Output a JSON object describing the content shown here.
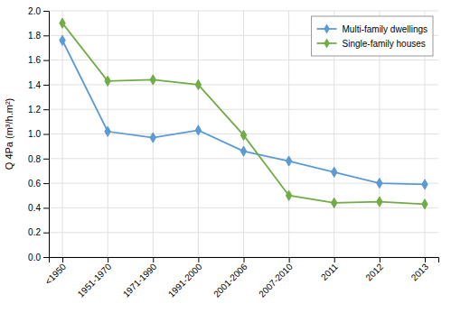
{
  "chart_data": {
    "type": "line",
    "ylabel": "Q 4Pa (m³/h.m²)",
    "categories": [
      "<1950",
      "1951-1970",
      "1971-1990",
      "1991-2000",
      "2001-2006",
      "2007-2010",
      "2011",
      "2012",
      "2013"
    ],
    "series": [
      {
        "name": "Multi-family dwellings",
        "color": "#5B9BD5",
        "marker": "diamond",
        "values": [
          1.76,
          1.02,
          0.97,
          1.03,
          0.86,
          0.78,
          0.69,
          0.6,
          0.59
        ]
      },
      {
        "name": "Single-family houses",
        "color": "#70AD47",
        "marker": "diamond",
        "values": [
          1.9,
          1.43,
          1.44,
          1.4,
          0.99,
          0.5,
          0.44,
          0.45,
          0.43
        ]
      }
    ],
    "ylim": [
      0.0,
      2.0
    ],
    "yticks": [
      {
        "value": 0.0,
        "label": "0.0"
      },
      0.2,
      0.4,
      0.6,
      0.8,
      {
        "value": 1.0,
        "label": "1.0"
      },
      1.2,
      1.4,
      1.6,
      1.8,
      {
        "value": 2.0,
        "label": "2.0"
      }
    ],
    "grid": true,
    "legend": "top-right"
  }
}
